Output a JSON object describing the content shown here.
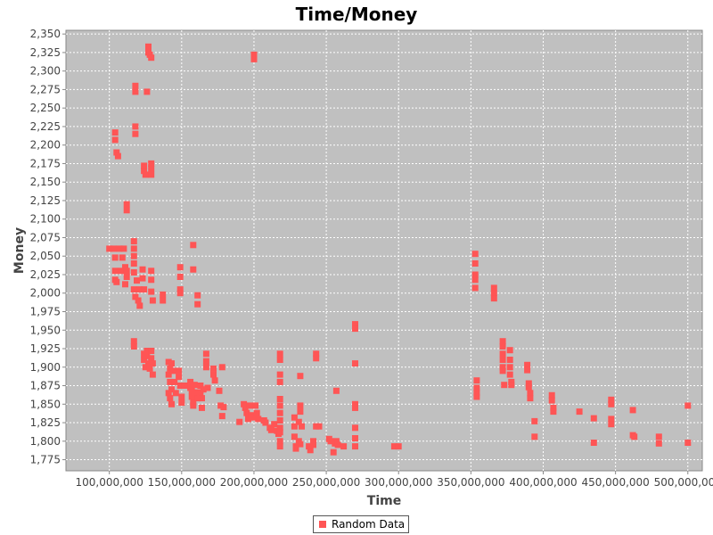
{
  "chart_data": {
    "type": "scatter",
    "title": "Time/Money",
    "xlabel": "Time",
    "ylabel": "Money",
    "xlim": [
      70000000,
      510000000
    ],
    "ylim": [
      1760,
      2355
    ],
    "x_ticks": [
      100000000,
      150000000,
      200000000,
      250000000,
      300000000,
      350000000,
      400000000,
      450000000,
      500000000
    ],
    "x_tick_labels": [
      "100,000,000",
      "150,000,000",
      "200,000,000",
      "250,000,000",
      "300,000,000",
      "350,000,000",
      "400,000,000",
      "450,000,000",
      "500,000,000"
    ],
    "y_ticks": [
      1775,
      1800,
      1825,
      1850,
      1875,
      1900,
      1925,
      1950,
      1975,
      2000,
      2025,
      2050,
      2075,
      2100,
      2125,
      2150,
      2175,
      2200,
      2225,
      2250,
      2275,
      2300,
      2325,
      2350
    ],
    "y_tick_labels": [
      "1,775",
      "1,800",
      "1,825",
      "1,850",
      "1,875",
      "1,900",
      "1,925",
      "1,950",
      "1,975",
      "2,000",
      "2,025",
      "2,050",
      "2,075",
      "2,100",
      "2,125",
      "2,150",
      "2,175",
      "2,200",
      "2,225",
      "2,250",
      "2,275",
      "2,300",
      "2,325",
      "2,350"
    ],
    "grid": true,
    "legend_position": "bottom-center",
    "colors": {
      "plot_background": "#c0c0c0",
      "gridline": "#ffffff",
      "marker": "#ff5555",
      "axis": "#888888"
    },
    "series": [
      {
        "name": "Random Data",
        "color": "#ff5555",
        "points": [
          [
            100000000,
            2060
          ],
          [
            103000000,
            2060
          ],
          [
            104000000,
            2048
          ],
          [
            104000000,
            2030
          ],
          [
            104000000,
            2018
          ],
          [
            105000000,
            2015
          ],
          [
            104000000,
            2217
          ],
          [
            104000000,
            2207
          ],
          [
            105000000,
            2190
          ],
          [
            106000000,
            2185
          ],
          [
            107000000,
            2060
          ],
          [
            108000000,
            2030
          ],
          [
            109000000,
            2048
          ],
          [
            110000000,
            2060
          ],
          [
            111000000,
            2035
          ],
          [
            112000000,
            2030
          ],
          [
            112000000,
            2022
          ],
          [
            111000000,
            2012
          ],
          [
            112000000,
            2120
          ],
          [
            112000000,
            2112
          ],
          [
            117000000,
            2070
          ],
          [
            117000000,
            2060
          ],
          [
            117000000,
            2050
          ],
          [
            117000000,
            2040
          ],
          [
            117000000,
            2028
          ],
          [
            117000000,
            2005
          ],
          [
            118000000,
            1995
          ],
          [
            119000000,
            2017
          ],
          [
            120000000,
            1990
          ],
          [
            121000000,
            1983
          ],
          [
            121000000,
            2005
          ],
          [
            118000000,
            2280
          ],
          [
            118000000,
            2272
          ],
          [
            118000000,
            2225
          ],
          [
            118000000,
            2215
          ],
          [
            117000000,
            1935
          ],
          [
            117000000,
            1928
          ],
          [
            123000000,
            2032
          ],
          [
            123000000,
            2020
          ],
          [
            124000000,
            2005
          ],
          [
            124000000,
            2172
          ],
          [
            124000000,
            2165
          ],
          [
            125000000,
            2160
          ],
          [
            126000000,
            2272
          ],
          [
            127000000,
            2333
          ],
          [
            127000000,
            2325
          ],
          [
            128000000,
            2322
          ],
          [
            129000000,
            2318
          ],
          [
            129000000,
            2175
          ],
          [
            129000000,
            2168
          ],
          [
            129000000,
            2160
          ],
          [
            129000000,
            2030
          ],
          [
            129000000,
            2018
          ],
          [
            129000000,
            2002
          ],
          [
            130000000,
            1990
          ],
          [
            124000000,
            1918
          ],
          [
            124000000,
            1910
          ],
          [
            125000000,
            1900
          ],
          [
            126000000,
            1922
          ],
          [
            126000000,
            1915
          ],
          [
            127000000,
            1905
          ],
          [
            128000000,
            1898
          ],
          [
            129000000,
            1922
          ],
          [
            129000000,
            1912
          ],
          [
            130000000,
            1905
          ],
          [
            130000000,
            1890
          ],
          [
            137000000,
            1998
          ],
          [
            137000000,
            1990
          ],
          [
            141000000,
            1907
          ],
          [
            142000000,
            1898
          ],
          [
            141000000,
            1890
          ],
          [
            142000000,
            1880
          ],
          [
            143000000,
            1870
          ],
          [
            141000000,
            1865
          ],
          [
            142000000,
            1858
          ],
          [
            143000000,
            1850
          ],
          [
            143000000,
            1905
          ],
          [
            144000000,
            1895
          ],
          [
            145000000,
            1880
          ],
          [
            146000000,
            1865
          ],
          [
            148000000,
            1895
          ],
          [
            148000000,
            1887
          ],
          [
            149000000,
            1875
          ],
          [
            150000000,
            1860
          ],
          [
            150000000,
            1852
          ],
          [
            149000000,
            2035
          ],
          [
            149000000,
            2022
          ],
          [
            149000000,
            2005
          ],
          [
            149000000,
            2000
          ],
          [
            152000000,
            1875
          ],
          [
            156000000,
            1880
          ],
          [
            156000000,
            1872
          ],
          [
            157000000,
            1868
          ],
          [
            157000000,
            1860
          ],
          [
            158000000,
            1852
          ],
          [
            158000000,
            1848
          ],
          [
            159000000,
            1876
          ],
          [
            160000000,
            1866
          ],
          [
            161000000,
            1858
          ],
          [
            158000000,
            2065
          ],
          [
            158000000,
            2032
          ],
          [
            161000000,
            1997
          ],
          [
            161000000,
            1985
          ],
          [
            163000000,
            1875
          ],
          [
            163000000,
            1866
          ],
          [
            164000000,
            1858
          ],
          [
            164000000,
            1845
          ],
          [
            165000000,
            1870
          ],
          [
            167000000,
            1918
          ],
          [
            167000000,
            1908
          ],
          [
            167000000,
            1900
          ],
          [
            168000000,
            1872
          ],
          [
            172000000,
            1898
          ],
          [
            172000000,
            1890
          ],
          [
            173000000,
            1882
          ],
          [
            176000000,
            1868
          ],
          [
            177000000,
            1848
          ],
          [
            178000000,
            1900
          ],
          [
            178000000,
            1834
          ],
          [
            179000000,
            1846
          ],
          [
            190000000,
            1826
          ],
          [
            193000000,
            1850
          ],
          [
            194000000,
            1845
          ],
          [
            195000000,
            1838
          ],
          [
            196000000,
            1830
          ],
          [
            197000000,
            1848
          ],
          [
            198000000,
            1835
          ],
          [
            199000000,
            1832
          ],
          [
            200000000,
            2322
          ],
          [
            200000000,
            2316
          ],
          [
            201000000,
            1848
          ],
          [
            202000000,
            1838
          ],
          [
            203000000,
            1830
          ],
          [
            207000000,
            1828
          ],
          [
            208000000,
            1825
          ],
          [
            211000000,
            1818
          ],
          [
            212000000,
            1815
          ],
          [
            214000000,
            1823
          ],
          [
            216000000,
            1814
          ],
          [
            217000000,
            1810
          ],
          [
            218000000,
            1918
          ],
          [
            218000000,
            1910
          ],
          [
            218000000,
            1890
          ],
          [
            218000000,
            1880
          ],
          [
            218000000,
            1857
          ],
          [
            218000000,
            1848
          ],
          [
            218000000,
            1838
          ],
          [
            218000000,
            1828
          ],
          [
            218000000,
            1818
          ],
          [
            218000000,
            1812
          ],
          [
            218000000,
            1800
          ],
          [
            218000000,
            1793
          ],
          [
            228000000,
            1832
          ],
          [
            228000000,
            1820
          ],
          [
            228000000,
            1806
          ],
          [
            229000000,
            1793
          ],
          [
            229000000,
            1790
          ],
          [
            231000000,
            1826
          ],
          [
            231000000,
            1800
          ],
          [
            232000000,
            1796
          ],
          [
            232000000,
            1888
          ],
          [
            232000000,
            1848
          ],
          [
            232000000,
            1840
          ],
          [
            233000000,
            1820
          ],
          [
            238000000,
            1793
          ],
          [
            239000000,
            1788
          ],
          [
            241000000,
            1800
          ],
          [
            241000000,
            1795
          ],
          [
            243000000,
            1820
          ],
          [
            243000000,
            1918
          ],
          [
            243000000,
            1912
          ],
          [
            245000000,
            1820
          ],
          [
            252000000,
            1803
          ],
          [
            253000000,
            1800
          ],
          [
            255000000,
            1785
          ],
          [
            256000000,
            1797
          ],
          [
            257000000,
            1868
          ],
          [
            257000000,
            1800
          ],
          [
            258000000,
            1795
          ],
          [
            262000000,
            1793
          ],
          [
            270000000,
            1958
          ],
          [
            270000000,
            1952
          ],
          [
            270000000,
            1905
          ],
          [
            270000000,
            1850
          ],
          [
            270000000,
            1845
          ],
          [
            270000000,
            1818
          ],
          [
            270000000,
            1804
          ],
          [
            270000000,
            1793
          ],
          [
            297000000,
            1793
          ],
          [
            300000000,
            1793
          ],
          [
            353000000,
            2053
          ],
          [
            353000000,
            2040
          ],
          [
            353000000,
            2025
          ],
          [
            353000000,
            2018
          ],
          [
            353000000,
            2007
          ],
          [
            354000000,
            1882
          ],
          [
            354000000,
            1872
          ],
          [
            354000000,
            1865
          ],
          [
            354000000,
            1860
          ],
          [
            366000000,
            2007
          ],
          [
            366000000,
            2000
          ],
          [
            366000000,
            1993
          ],
          [
            372000000,
            1935
          ],
          [
            372000000,
            1928
          ],
          [
            372000000,
            1918
          ],
          [
            372000000,
            1910
          ],
          [
            372000000,
            1900
          ],
          [
            372000000,
            1895
          ],
          [
            373000000,
            1876
          ],
          [
            377000000,
            1923
          ],
          [
            377000000,
            1910
          ],
          [
            377000000,
            1900
          ],
          [
            377000000,
            1890
          ],
          [
            378000000,
            1880
          ],
          [
            378000000,
            1876
          ],
          [
            389000000,
            1903
          ],
          [
            389000000,
            1896
          ],
          [
            390000000,
            1878
          ],
          [
            390000000,
            1873
          ],
          [
            391000000,
            1865
          ],
          [
            391000000,
            1858
          ],
          [
            394000000,
            1827
          ],
          [
            394000000,
            1806
          ],
          [
            406000000,
            1862
          ],
          [
            406000000,
            1855
          ],
          [
            407000000,
            1845
          ],
          [
            407000000,
            1840
          ],
          [
            425000000,
            1840
          ],
          [
            435000000,
            1831
          ],
          [
            435000000,
            1798
          ],
          [
            447000000,
            1856
          ],
          [
            447000000,
            1850
          ],
          [
            447000000,
            1830
          ],
          [
            447000000,
            1823
          ],
          [
            462000000,
            1842
          ],
          [
            462000000,
            1808
          ],
          [
            463000000,
            1806
          ],
          [
            480000000,
            1806
          ],
          [
            480000000,
            1797
          ],
          [
            500000000,
            1848
          ],
          [
            500000000,
            1798
          ]
        ]
      }
    ]
  }
}
